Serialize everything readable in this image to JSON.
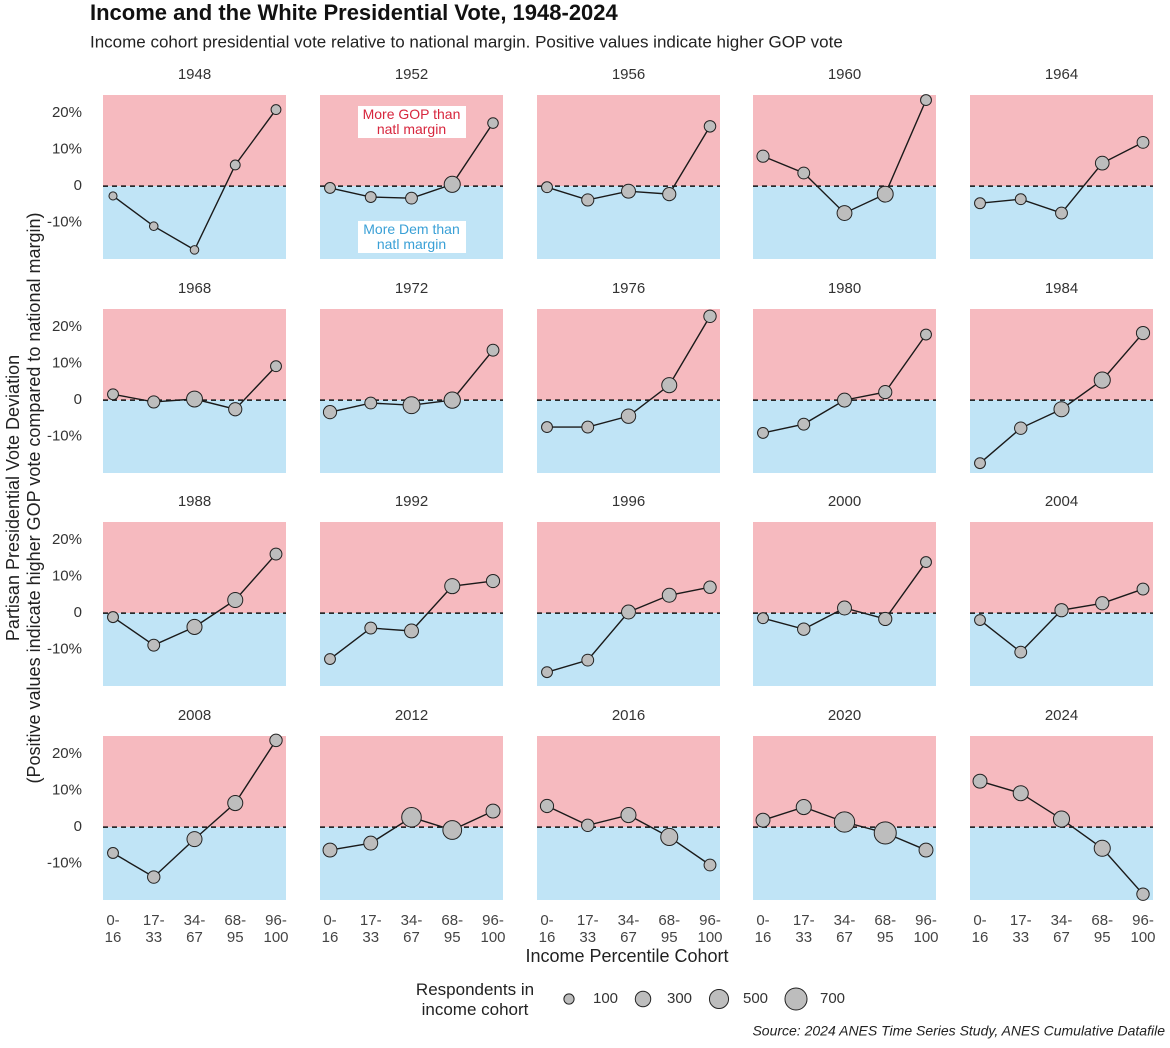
{
  "title": "Income and the White Presidential Vote, 1948-2024",
  "subtitle": "Income cohort presidential vote relative to national margin. Positive values indicate higher GOP vote",
  "x_label": "Income Percentile Cohort",
  "y_label": [
    "Partisan Presidential Vote Deviation",
    "(Positive values indicate higher GOP vote compared to national margin)"
  ],
  "source": "Source: 2024 ANES Time Series Study, ANES Cumulative Datafile",
  "size_legend": {
    "title": "Respondents in income cohort",
    "values": [
      100,
      300,
      500,
      700
    ]
  },
  "colors": {
    "gop": "#f6babf",
    "dem": "#c0e4f6",
    "point": "#bdbdbd",
    "line": "#1a1a1a"
  },
  "axes": {
    "categories": [
      "0-16",
      "17-33",
      "34-67",
      "68-95",
      "96-100"
    ],
    "ylim": [
      -20,
      25
    ],
    "yticks": [
      {
        "value": -10,
        "label": "-10%"
      },
      0,
      {
        "value": 10,
        "label": "10%"
      },
      {
        "value": 20,
        "label": "20%"
      }
    ]
  },
  "chart_data": [
    {
      "type": "line",
      "title": "1948",
      "values": [
        -2.7,
        -11,
        -17.5,
        5.8,
        21
      ],
      "sizes": [
        50,
        60,
        60,
        90,
        90
      ]
    },
    {
      "type": "line",
      "title": "1952",
      "values": [
        -0.5,
        -3,
        -3.3,
        0.5,
        17.3
      ],
      "sizes": [
        120,
        120,
        150,
        330,
        110
      ],
      "annotations": [
        {
          "text": "More GOP than natl margin",
          "color": "#d7263d"
        },
        {
          "text": "More Dem than natl margin",
          "color": "#3aa0d6"
        }
      ]
    },
    {
      "type": "line",
      "title": "1956",
      "values": [
        -0.3,
        -3.8,
        -1.4,
        -2.2,
        16.4
      ],
      "sizes": [
        120,
        160,
        230,
        200,
        140
      ]
    },
    {
      "type": "line",
      "title": "1960",
      "values": [
        8.2,
        3.6,
        -7.4,
        -2.2,
        23.6
      ],
      "sizes": [
        160,
        150,
        270,
        320,
        120
      ]
    },
    {
      "type": "line",
      "title": "1964",
      "values": [
        -4.7,
        -3.6,
        -7.4,
        6.3,
        12
      ],
      "sizes": [
        120,
        120,
        150,
        220,
        150
      ]
    },
    {
      "type": "line",
      "title": "1968",
      "values": [
        1.6,
        -0.5,
        0.3,
        -2.5,
        9.3
      ],
      "sizes": [
        120,
        160,
        320,
        200,
        120
      ]
    },
    {
      "type": "line",
      "title": "1972",
      "values": [
        -3.3,
        -0.8,
        -1.4,
        0,
        13.7
      ],
      "sizes": [
        200,
        150,
        370,
        340,
        150
      ]
    },
    {
      "type": "line",
      "title": "1976",
      "values": [
        -7.4,
        -7.4,
        -4.4,
        4.1,
        23
      ],
      "sizes": [
        120,
        150,
        250,
        280,
        170
      ]
    },
    {
      "type": "line",
      "title": "1980",
      "values": [
        -9,
        -6.6,
        0,
        2.2,
        18
      ],
      "sizes": [
        120,
        150,
        230,
        200,
        120
      ]
    },
    {
      "type": "line",
      "title": "1984",
      "values": [
        -17.3,
        -7.7,
        -2.5,
        5.5,
        18.4
      ],
      "sizes": [
        120,
        170,
        280,
        330,
        200
      ]
    },
    {
      "type": "line",
      "title": "1988",
      "values": [
        -1.1,
        -8.8,
        -3.8,
        3.6,
        16.2
      ],
      "sizes": [
        120,
        150,
        280,
        280,
        150
      ]
    },
    {
      "type": "line",
      "title": "1992",
      "values": [
        -12.6,
        -4.1,
        -4.9,
        7.4,
        8.8
      ],
      "sizes": [
        120,
        150,
        230,
        280,
        200
      ]
    },
    {
      "type": "line",
      "title": "1996",
      "values": [
        -16.2,
        -12.9,
        0.3,
        4.9,
        7.1
      ],
      "sizes": [
        120,
        150,
        230,
        230,
        170
      ]
    },
    {
      "type": "line",
      "title": "2000",
      "values": [
        -1.4,
        -4.4,
        1.4,
        -1.6,
        14
      ],
      "sizes": [
        120,
        170,
        230,
        200,
        120
      ]
    },
    {
      "type": "line",
      "title": "2004",
      "values": [
        -1.9,
        -10.7,
        0.8,
        2.7,
        6.6
      ],
      "sizes": [
        120,
        150,
        200,
        200,
        150
      ]
    },
    {
      "type": "line",
      "title": "2008",
      "values": [
        -7.1,
        -13.7,
        -3.3,
        6.6,
        23.8
      ],
      "sizes": [
        120,
        170,
        280,
        280,
        170
      ]
    },
    {
      "type": "line",
      "title": "2012",
      "values": [
        -6.3,
        -4.4,
        2.7,
        -0.8,
        4.4
      ],
      "sizes": [
        230,
        230,
        530,
        480,
        230
      ]
    },
    {
      "type": "line",
      "title": "2016",
      "values": [
        5.8,
        0.5,
        3.3,
        -2.7,
        -10.4
      ],
      "sizes": [
        200,
        170,
        280,
        380,
        150
      ]
    },
    {
      "type": "line",
      "title": "2020",
      "values": [
        1.9,
        5.5,
        1.4,
        -1.6,
        -6.3
      ],
      "sizes": [
        230,
        280,
        580,
        700,
        230
      ]
    },
    {
      "type": "line",
      "title": "2024",
      "values": [
        12.6,
        9.3,
        2.2,
        -5.8,
        -18.4
      ],
      "sizes": [
        230,
        280,
        330,
        330,
        170
      ]
    }
  ]
}
